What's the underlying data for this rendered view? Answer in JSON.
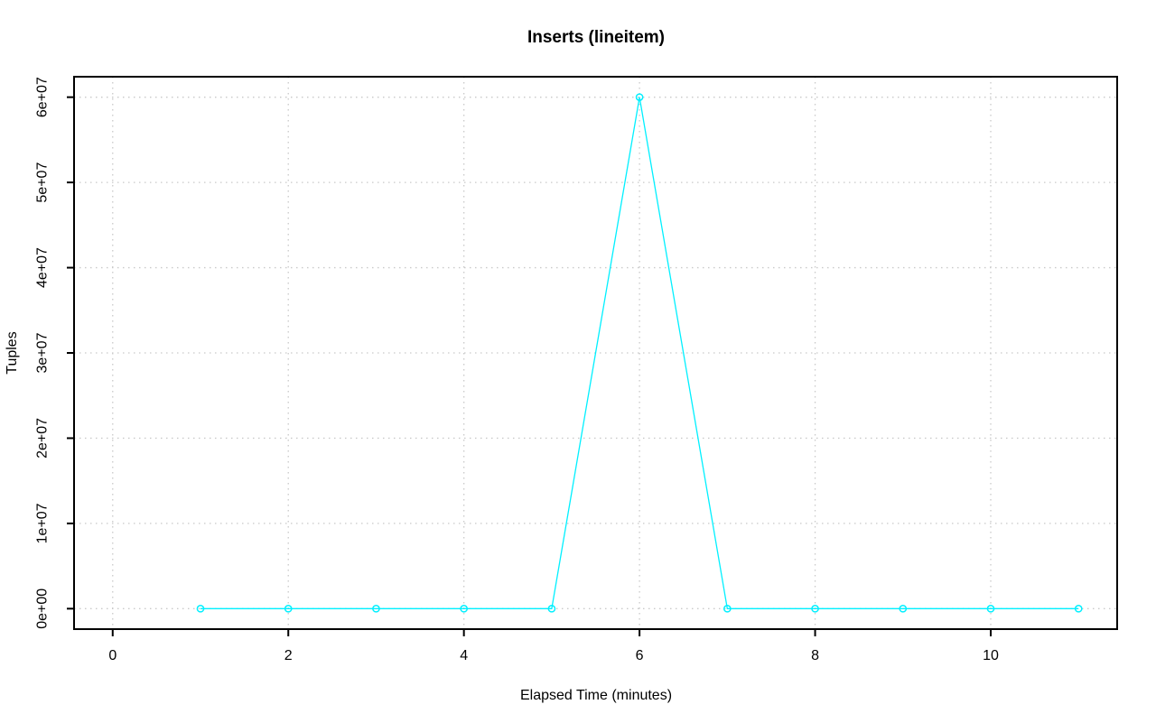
{
  "page": {
    "background": "#ffffff"
  },
  "chart_data": {
    "type": "line",
    "title": "Inserts (lineitem)",
    "xlabel": "Elapsed Time (minutes)",
    "ylabel": "Tuples",
    "x": [
      1,
      2,
      3,
      4,
      5,
      6,
      7,
      8,
      9,
      10,
      11
    ],
    "values": [
      0,
      0,
      0,
      0,
      0,
      60000000,
      0,
      0,
      0,
      0,
      0
    ],
    "xlim": [
      -0.44,
      11.44
    ],
    "ylim": [
      -2400000,
      62400000
    ],
    "xticks": {
      "values": [
        0,
        2,
        4,
        6,
        8,
        10
      ],
      "labels": [
        "0",
        "2",
        "4",
        "6",
        "8",
        "10"
      ]
    },
    "yticks": {
      "values": [
        0,
        10000000,
        20000000,
        30000000,
        40000000,
        50000000,
        60000000
      ],
      "labels": [
        "0e+00",
        "1e+07",
        "2e+07",
        "3e+07",
        "4e+07",
        "5e+07",
        "6e+07"
      ]
    },
    "grid": true,
    "grid_style": "dotted",
    "legend": "none",
    "marker": "open-circle",
    "colors": {
      "line": "#00F0FF",
      "grid": "#C9C9C9",
      "axis": "#000000",
      "background": "#FFFFFF"
    }
  }
}
